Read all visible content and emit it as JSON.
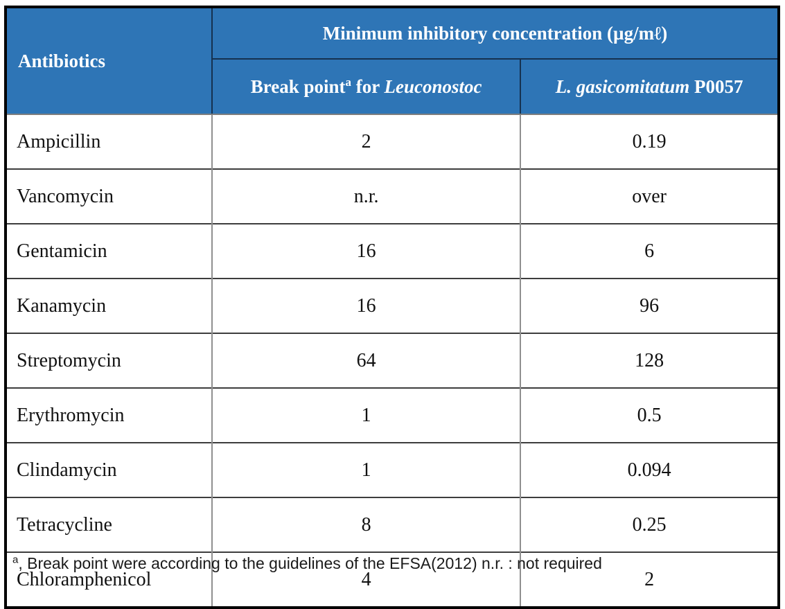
{
  "colors": {
    "header_bg": "#2E75B6",
    "header_text": "#FFFFFF",
    "outer_border": "#000000",
    "header_divider": "#15314F",
    "body_vertical_border": "#8F8F8F",
    "body_horizontal_border": "#3D3D3D"
  },
  "table": {
    "header": {
      "antibiotics_label": "Antibiotics",
      "mic_title": "Minimum inhibitory concentration (µg/mℓ)",
      "col2": {
        "prefix": "Break point",
        "sup": "a",
        "mid": " for ",
        "species": "Leuconostoc"
      },
      "col3": {
        "species": "L. gasicomitatum",
        "strain": " P0057"
      }
    },
    "rows": [
      {
        "antibiotic": "Ampicillin",
        "break_point": "2",
        "mic": "0.19"
      },
      {
        "antibiotic": "Vancomycin",
        "break_point": "n.r.",
        "mic": "over"
      },
      {
        "antibiotic": "Gentamicin",
        "break_point": "16",
        "mic": "6"
      },
      {
        "antibiotic": "Kanamycin",
        "break_point": "16",
        "mic": "96"
      },
      {
        "antibiotic": "Streptomycin",
        "break_point": "64",
        "mic": "128"
      },
      {
        "antibiotic": "Erythromycin",
        "break_point": "1",
        "mic": "0.5"
      },
      {
        "antibiotic": "Clindamycin",
        "break_point": "1",
        "mic": "0.094"
      },
      {
        "antibiotic": "Tetracycline",
        "break_point": "8",
        "mic": "0.25"
      },
      {
        "antibiotic": "Chloramphenicol",
        "break_point": "4",
        "mic": "2"
      }
    ]
  },
  "footnote": {
    "sup": "a",
    "text": ", Break point were according to the guidelines of the EFSA(2012) n.r. : not required"
  }
}
